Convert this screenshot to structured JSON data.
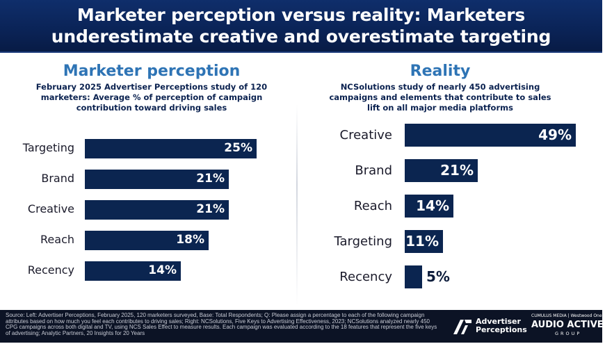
{
  "header": {
    "title": "Marketer perception versus reality: Marketers underestimate creative and overestimate targeting"
  },
  "left_panel": {
    "title": "Marketer perception",
    "subtitle": "February 2025 Advertiser Perceptions study of 120 marketers: Average % of perception of campaign contribution toward driving sales"
  },
  "right_panel": {
    "title": "Reality",
    "subtitle": "NCSolutions study of nearly 450 advertising campaigns and elements that contribute to sales lift on all major media platforms"
  },
  "chart_data": [
    {
      "type": "bar",
      "orientation": "horizontal",
      "title": "Marketer perception",
      "categories": [
        "Targeting",
        "Brand",
        "Creative",
        "Reach",
        "Recency"
      ],
      "values": [
        25,
        21,
        21,
        18,
        14
      ],
      "value_labels": [
        "25%",
        "21%",
        "21%",
        "18%",
        "14%"
      ],
      "unit": "%",
      "xlim": [
        0,
        25
      ],
      "grid": false,
      "bar_color": "#0b2550"
    },
    {
      "type": "bar",
      "orientation": "horizontal",
      "title": "Reality",
      "categories": [
        "Creative",
        "Brand",
        "Reach",
        "Targeting",
        "Recency"
      ],
      "values": [
        49,
        21,
        14,
        11,
        5
      ],
      "value_labels": [
        "49%",
        "21%",
        "14%",
        "11%",
        "5%"
      ],
      "unit": "%",
      "xlim": [
        0,
        49
      ],
      "grid": false,
      "bar_color": "#0b2550"
    }
  ],
  "footer": {
    "source": "Source: Left: Advertiser Perceptions, February 2025, 120 marketers surveyed, Base: Total Respondents; Q: Please assign a percentage to each of the following campaign attributes based on how much you feel each contributes to driving sales; Right: NCSolutions, Five Keys to Advertising Effectiveness, 2023; NCSolutions analyzed nearly 450 CPG campaigns across both digital and TV, using NCS Sales Effect to measure results. Each campaign was evaluated according to the 18 features that represent the five keys of advertising; Analytic Partners, 20 Insights for 20 Years",
    "logo1_line1": "Advertiser",
    "logo1_line2": "Perceptions",
    "logo2_small": "CUMULUS MEDIA | Westwood One",
    "logo2_main": "AUDIO ACTIVE",
    "logo2_group": "GROUP"
  },
  "colors": {
    "header_bg": "#0a2356",
    "panel_title": "#2e74b5",
    "subtitle": "#0b2250",
    "bar": "#0b2550",
    "footer_bg": "#0c1325"
  }
}
